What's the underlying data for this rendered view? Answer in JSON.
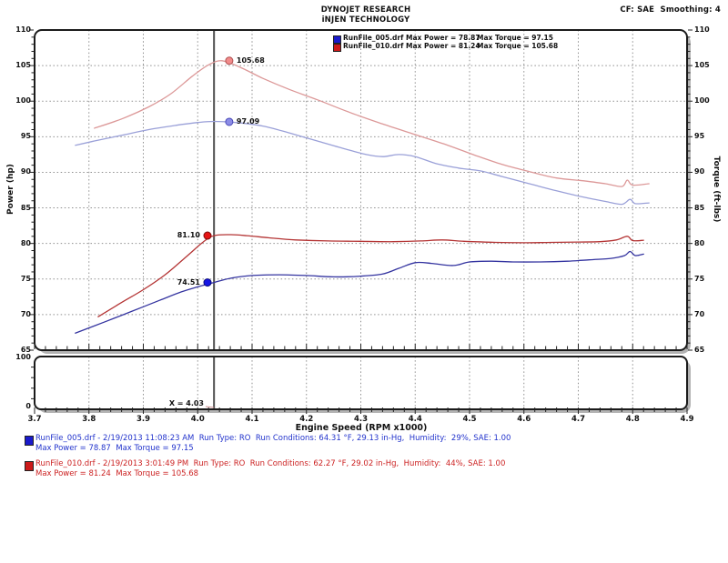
{
  "header": {
    "title_line1": "DYNOJET RESEARCH",
    "title_line2": "iNJEN TECHNOLOGY",
    "correction_info": "CF: SAE  Smoothing: 4"
  },
  "legend": {
    "rows": [
      {
        "color": "#1a1acc",
        "power_text": "RunFile_005.drf Max Power = 78.87",
        "torque_text": "Max Torque = 97.15"
      },
      {
        "color": "#cc1a1a",
        "power_text": "RunFile_010.drf Max Power = 81.24",
        "torque_text": "Max Torque = 105.68"
      }
    ]
  },
  "chart_data": {
    "type": "line",
    "xlabel": "Engine Speed (RPM x1000)",
    "ylabel_left": "Power (hp)",
    "ylabel_right": "Torque (ft-lbs)",
    "xlim": [
      3.7,
      4.9
    ],
    "ylim": [
      65,
      110
    ],
    "x_ticks": [
      3.7,
      3.8,
      3.9,
      4.0,
      4.1,
      4.2,
      4.3,
      4.4,
      4.5,
      4.6,
      4.7,
      4.8,
      4.9
    ],
    "y_ticks": [
      65,
      70,
      75,
      80,
      85,
      90,
      95,
      100,
      105,
      110
    ],
    "grid": "dotted",
    "legend_position": "top-center-inside",
    "cursor_x": 4.03,
    "cursor_label": "X = 4.03",
    "series": [
      {
        "name": "RunFile_010.drf Torque",
        "axis": "torque",
        "color": "#dc9898",
        "max": 105.68,
        "points": [
          [
            3.81,
            96.2
          ],
          [
            3.86,
            97.5
          ],
          [
            3.91,
            99.2
          ],
          [
            3.95,
            101.0
          ],
          [
            3.99,
            103.5
          ],
          [
            4.02,
            105.1
          ],
          [
            4.045,
            105.68
          ],
          [
            4.08,
            104.7
          ],
          [
            4.12,
            103.2
          ],
          [
            4.17,
            101.6
          ],
          [
            4.22,
            100.2
          ],
          [
            4.28,
            98.4
          ],
          [
            4.34,
            96.8
          ],
          [
            4.4,
            95.3
          ],
          [
            4.46,
            93.8
          ],
          [
            4.51,
            92.4
          ],
          [
            4.56,
            91.1
          ],
          [
            4.61,
            90.1
          ],
          [
            4.66,
            89.2
          ],
          [
            4.71,
            88.8
          ],
          [
            4.75,
            88.4
          ],
          [
            4.78,
            88.0
          ],
          [
            4.79,
            88.9
          ],
          [
            4.8,
            88.2
          ],
          [
            4.83,
            88.4
          ]
        ]
      },
      {
        "name": "RunFile_005.drf Torque",
        "axis": "torque",
        "color": "#9aa0d8",
        "max": 97.15,
        "points": [
          [
            3.775,
            93.8
          ],
          [
            3.81,
            94.4
          ],
          [
            3.86,
            95.2
          ],
          [
            3.91,
            96.0
          ],
          [
            3.96,
            96.6
          ],
          [
            4.0,
            97.0
          ],
          [
            4.03,
            97.15
          ],
          [
            4.07,
            97.0
          ],
          [
            4.12,
            96.5
          ],
          [
            4.17,
            95.5
          ],
          [
            4.22,
            94.4
          ],
          [
            4.27,
            93.3
          ],
          [
            4.31,
            92.5
          ],
          [
            4.34,
            92.2
          ],
          [
            4.37,
            92.5
          ],
          [
            4.4,
            92.2
          ],
          [
            4.44,
            91.2
          ],
          [
            4.48,
            90.6
          ],
          [
            4.52,
            90.2
          ],
          [
            4.56,
            89.4
          ],
          [
            4.61,
            88.4
          ],
          [
            4.66,
            87.4
          ],
          [
            4.71,
            86.5
          ],
          [
            4.75,
            85.9
          ],
          [
            4.78,
            85.5
          ],
          [
            4.795,
            86.2
          ],
          [
            4.805,
            85.6
          ],
          [
            4.83,
            85.7
          ]
        ]
      },
      {
        "name": "RunFile_010.drf Power",
        "axis": "power",
        "color": "#b43434",
        "max": 81.24,
        "points": [
          [
            3.817,
            69.7
          ],
          [
            3.86,
            71.7
          ],
          [
            3.9,
            73.5
          ],
          [
            3.94,
            75.6
          ],
          [
            3.98,
            78.2
          ],
          [
            4.01,
            80.2
          ],
          [
            4.03,
            81.1
          ],
          [
            4.06,
            81.24
          ],
          [
            4.09,
            81.1
          ],
          [
            4.13,
            80.8
          ],
          [
            4.18,
            80.5
          ],
          [
            4.24,
            80.35
          ],
          [
            4.3,
            80.3
          ],
          [
            4.36,
            80.25
          ],
          [
            4.41,
            80.35
          ],
          [
            4.45,
            80.5
          ],
          [
            4.49,
            80.3
          ],
          [
            4.55,
            80.15
          ],
          [
            4.6,
            80.1
          ],
          [
            4.65,
            80.15
          ],
          [
            4.7,
            80.2
          ],
          [
            4.74,
            80.25
          ],
          [
            4.77,
            80.5
          ],
          [
            4.79,
            81.0
          ],
          [
            4.8,
            80.4
          ],
          [
            4.82,
            80.45
          ]
        ]
      },
      {
        "name": "RunFile_005.drf Power",
        "axis": "power",
        "color": "#3434a0",
        "max": 78.87,
        "points": [
          [
            3.775,
            67.4
          ],
          [
            3.83,
            69.0
          ],
          [
            3.88,
            70.5
          ],
          [
            3.93,
            72.0
          ],
          [
            3.97,
            73.2
          ],
          [
            4.0,
            73.9
          ],
          [
            4.03,
            74.51
          ],
          [
            4.06,
            75.1
          ],
          [
            4.1,
            75.5
          ],
          [
            4.15,
            75.6
          ],
          [
            4.2,
            75.5
          ],
          [
            4.25,
            75.3
          ],
          [
            4.3,
            75.4
          ],
          [
            4.34,
            75.7
          ],
          [
            4.37,
            76.5
          ],
          [
            4.4,
            77.3
          ],
          [
            4.43,
            77.2
          ],
          [
            4.47,
            76.9
          ],
          [
            4.5,
            77.4
          ],
          [
            4.54,
            77.5
          ],
          [
            4.58,
            77.4
          ],
          [
            4.63,
            77.4
          ],
          [
            4.68,
            77.5
          ],
          [
            4.72,
            77.7
          ],
          [
            4.76,
            77.9
          ],
          [
            4.785,
            78.3
          ],
          [
            4.795,
            78.87
          ],
          [
            4.805,
            78.3
          ],
          [
            4.82,
            78.5
          ]
        ]
      }
    ],
    "cursor_markers": [
      {
        "label": "105.68",
        "value": 105.68,
        "rpm": 4.058,
        "fill": "#f28b8b",
        "stroke": "#b05050",
        "side": "right"
      },
      {
        "label": "97.09",
        "value": 97.09,
        "rpm": 4.058,
        "fill": "#8c8ce6",
        "stroke": "#4848b8",
        "side": "right"
      },
      {
        "label": "81.10",
        "value": 81.1,
        "rpm": 4.018,
        "fill": "#e61414",
        "stroke": "#7a0a0a",
        "side": "left"
      },
      {
        "label": "74.51",
        "value": 74.51,
        "rpm": 4.018,
        "fill": "#1414e6",
        "stroke": "#0a0a7a",
        "side": "left"
      }
    ],
    "strip": {
      "ylim": [
        0,
        100
      ],
      "y_tick_labels": [
        "100",
        "0"
      ],
      "y_minor_step": 20
    }
  },
  "footer_runs": [
    {
      "color": "#1a1acc",
      "text_color": "#2233cc",
      "line1": "RunFile_005.drf - 2/19/2013 11:08:23 AM  Run Type: RO  Run Conditions: 64.31 °F, 29.13 in-Hg,  Humidity:  29%, SAE: 1.00",
      "line2": "Max Power = 78.87  Max Torque = 97.15"
    },
    {
      "color": "#cc1a1a",
      "text_color": "#cc2222",
      "line1": "RunFile_010.drf - 2/19/2013 3:01:49 PM  Run Type: RO  Run Conditions: 62.27 °F, 29.02 in-Hg,  Humidity:  44%, SAE: 1.00",
      "line2": "Max Power = 81.24  Max Torque = 105.68"
    }
  ]
}
